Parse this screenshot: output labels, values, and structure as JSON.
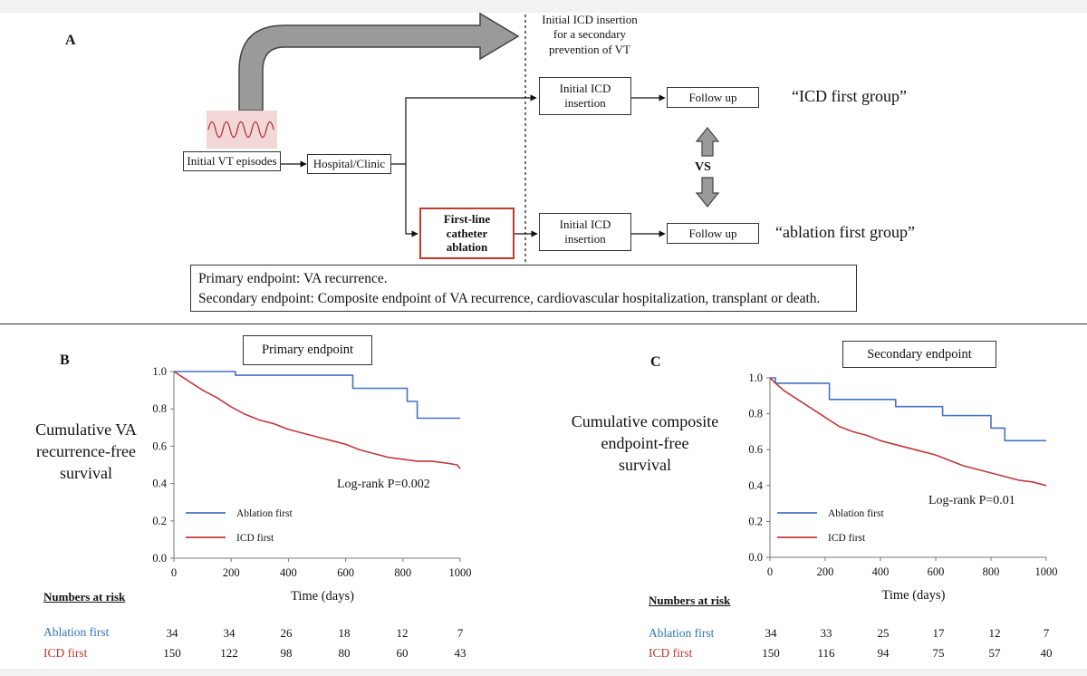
{
  "panels": {
    "a": "A",
    "b": "B",
    "c": "C"
  },
  "flow": {
    "initial_vt": "Initial VT episodes",
    "hospital": "Hospital/Clinic",
    "icd_insertion_note": [
      "Initial ICD insertion",
      "for a secondary",
      "prevention of VT"
    ],
    "initial_icd": [
      "Initial ICD",
      "insertion"
    ],
    "follow_up": "Follow up",
    "ablation_box": [
      "First-line",
      "catheter",
      "ablation"
    ],
    "vs": "VS",
    "icd_group": "“ICD first group”",
    "ablation_group": "“ablation first group”"
  },
  "endpoints": {
    "primary": "Primary endpoint: VA recurrence.",
    "secondary": "Secondary endpoint: Composite endpoint of VA recurrence, cardiovascular hospitalization, transplant or death."
  },
  "colors": {
    "ablation": "#4472c4",
    "icd": "#c0393b",
    "ablation_text": "#2e75b6",
    "ablation_box_border": "#c0392b"
  },
  "risk": {
    "header": "Numbers at risk",
    "ablation_label": "Ablation first",
    "icd_label": "ICD first",
    "b_ablation": [
      "34",
      "34",
      "26",
      "18",
      "12",
      "7"
    ],
    "b_icd": [
      "150",
      "122",
      "98",
      "80",
      "60",
      "43"
    ],
    "c_ablation": [
      "34",
      "33",
      "25",
      "17",
      "12",
      "7"
    ],
    "c_icd": [
      "150",
      "116",
      "94",
      "75",
      "57",
      "40"
    ]
  },
  "chart_data": [
    {
      "type": "line",
      "id": "B",
      "title": "Primary endpoint",
      "ylabel": "Cumulative VA recurrence-free survival",
      "ylabel_lines": [
        "Cumulative VA",
        "recurrence-free",
        "survival"
      ],
      "xlabel": "Time (days)",
      "xlim": [
        0,
        1000
      ],
      "ylim": [
        0,
        1.0
      ],
      "x_ticks": [
        "0",
        "200",
        "400",
        "600",
        "800",
        "1000"
      ],
      "y_ticks": [
        "0.0",
        "0.2",
        "0.4",
        "0.6",
        "0.8",
        "1.0"
      ],
      "annotation": "Log-rank P=0.002",
      "legend": [
        "Ablation first",
        "ICD first"
      ],
      "series": [
        {
          "name": "Ablation first",
          "step": true,
          "x": [
            0,
            215,
            215,
            625,
            625,
            815,
            815,
            850,
            850,
            1000
          ],
          "y": [
            1.0,
            1.0,
            0.98,
            0.98,
            0.91,
            0.91,
            0.84,
            0.84,
            0.75,
            0.75
          ]
        },
        {
          "name": "ICD first",
          "step": false,
          "x": [
            0,
            20,
            50,
            100,
            150,
            200,
            250,
            300,
            350,
            400,
            450,
            500,
            550,
            600,
            650,
            700,
            750,
            800,
            850,
            900,
            950,
            990,
            1000
          ],
          "y": [
            1.0,
            0.98,
            0.95,
            0.9,
            0.86,
            0.81,
            0.77,
            0.74,
            0.72,
            0.69,
            0.67,
            0.65,
            0.63,
            0.61,
            0.58,
            0.56,
            0.54,
            0.53,
            0.52,
            0.52,
            0.51,
            0.5,
            0.48
          ]
        }
      ]
    },
    {
      "type": "line",
      "id": "C",
      "title": "Secondary endpoint",
      "ylabel": "Cumulative composite endpoint-free survival",
      "ylabel_lines": [
        "Cumulative composite",
        "endpoint-free",
        "survival"
      ],
      "xlabel": "Time (days)",
      "xlim": [
        0,
        1000
      ],
      "ylim": [
        0,
        1.0
      ],
      "x_ticks": [
        "0",
        "200",
        "400",
        "600",
        "800",
        "1000"
      ],
      "y_ticks": [
        "0.0",
        "0.2",
        "0.4",
        "0.6",
        "0.8",
        "1.0"
      ],
      "annotation": "Log-rank P=0.01",
      "legend": [
        "Ablation first",
        "ICD first"
      ],
      "series": [
        {
          "name": "Ablation first",
          "step": true,
          "x": [
            0,
            20,
            20,
            215,
            215,
            455,
            455,
            625,
            625,
            800,
            800,
            850,
            850,
            1000
          ],
          "y": [
            1.0,
            1.0,
            0.97,
            0.97,
            0.88,
            0.88,
            0.84,
            0.84,
            0.79,
            0.79,
            0.72,
            0.72,
            0.65,
            0.65
          ]
        },
        {
          "name": "ICD first",
          "step": false,
          "x": [
            0,
            20,
            50,
            100,
            150,
            200,
            250,
            300,
            350,
            400,
            450,
            500,
            550,
            600,
            650,
            700,
            750,
            800,
            850,
            900,
            950,
            1000
          ],
          "y": [
            1.0,
            0.97,
            0.93,
            0.88,
            0.83,
            0.78,
            0.73,
            0.7,
            0.68,
            0.65,
            0.63,
            0.61,
            0.59,
            0.57,
            0.54,
            0.51,
            0.49,
            0.47,
            0.45,
            0.43,
            0.42,
            0.4
          ]
        }
      ]
    }
  ]
}
